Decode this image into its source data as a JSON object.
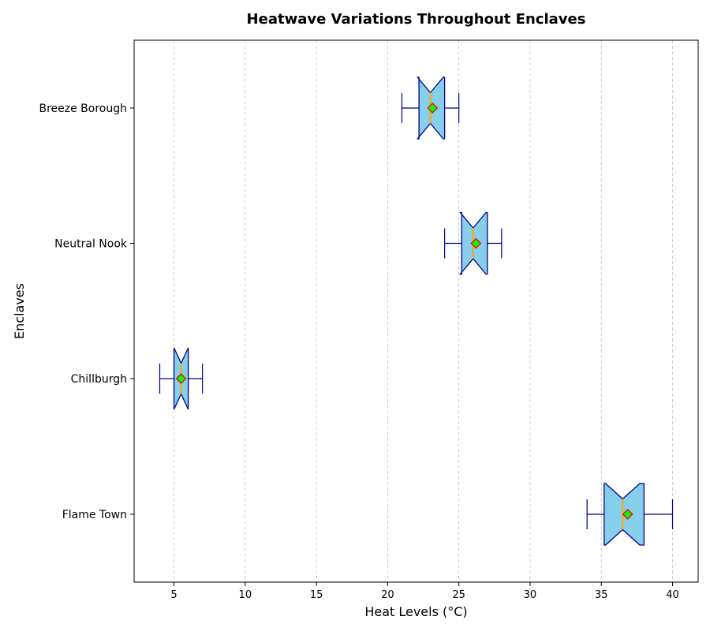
{
  "chart_data": {
    "type": "boxplot",
    "orientation": "horizontal",
    "title": "Heatwave Variations Throughout Enclaves",
    "xlabel": "Heat Levels (°C)",
    "ylabel": "Enclaves",
    "xlim": [
      2.2,
      41.8
    ],
    "xticks": [
      5,
      10,
      15,
      20,
      25,
      30,
      35,
      40
    ],
    "grid": "x-dashed",
    "categories": [
      "Breeze Borough",
      "Neutral Nook",
      "Chillburgh",
      "Flame Town"
    ],
    "boxes": [
      {
        "category": "Breeze Borough",
        "whisker_low": 21,
        "q1": 22.2,
        "median": 23.0,
        "q3": 24.0,
        "whisker_high": 25,
        "mean": 23.15,
        "notch_low": 22.1,
        "notch_high": 23.9
      },
      {
        "category": "Neutral Nook",
        "whisker_low": 24,
        "q1": 25.2,
        "median": 26.0,
        "q3": 27.0,
        "whisker_high": 28,
        "mean": 26.2,
        "notch_low": 25.1,
        "notch_high": 26.9
      },
      {
        "category": "Chillburgh",
        "whisker_low": 4,
        "q1": 5.0,
        "median": 5.5,
        "q3": 6.0,
        "whisker_high": 7,
        "mean": 5.5,
        "notch_low": 5.0,
        "notch_high": 6.0
      },
      {
        "category": "Flame Town",
        "whisker_low": 34,
        "q1": 35.2,
        "median": 36.5,
        "q3": 38.0,
        "whisker_high": 40,
        "mean": 36.85,
        "notch_low": 35.3,
        "notch_high": 37.7
      }
    ],
    "colors": {
      "box_fill": "#87ceeb",
      "box_edge": "#00008b",
      "median": "#ffa500",
      "mean_fill": "#00ff00",
      "mean_edge": "#ff0000",
      "grid": "#c0c0c0"
    }
  }
}
